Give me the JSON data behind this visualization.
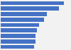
{
  "values": [
    95,
    88,
    70,
    65,
    58,
    55,
    53,
    52,
    50
  ],
  "bar_color": "#4472c4",
  "background_color": "#f2f2f2",
  "plot_bg_color": "#f2f2f2",
  "xlim": [
    0,
    105
  ],
  "bar_height": 0.75,
  "grid_color": "#ffffff",
  "grid_linewidth": 1.0
}
